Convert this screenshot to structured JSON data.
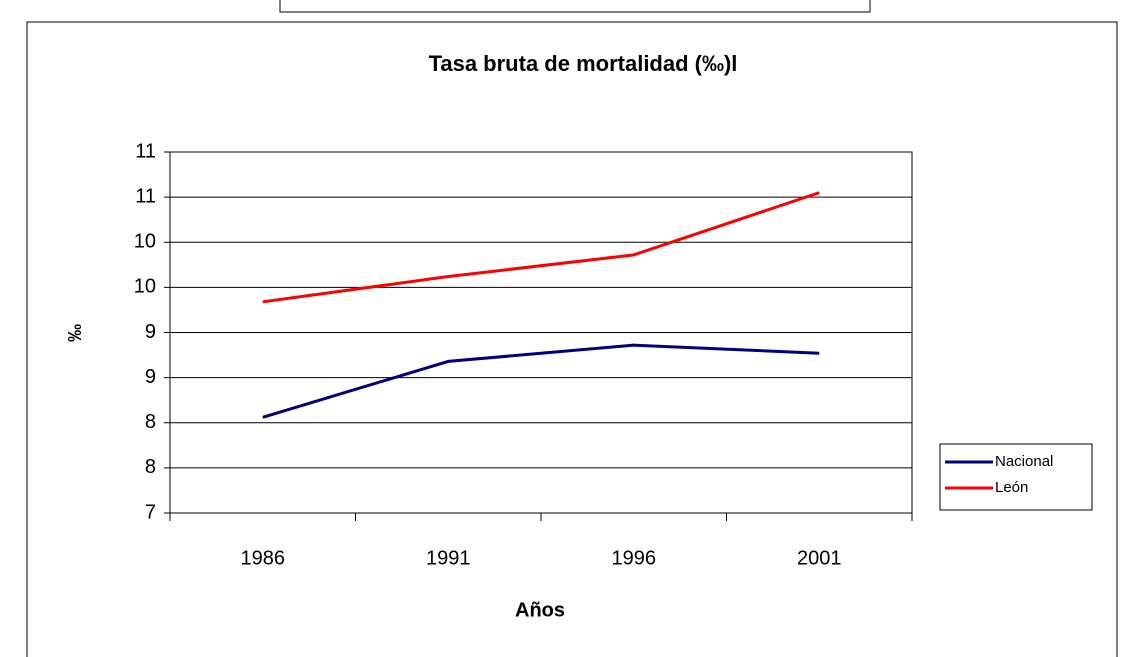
{
  "chart_data": {
    "type": "line",
    "title": "Tasa bruta de mortalidad  (‰)l",
    "y_label": "‰",
    "x_label": "Años",
    "categories": [
      "1986",
      "1991",
      "1996",
      "2001"
    ],
    "series": [
      {
        "name": "Nacional",
        "color": "#000080",
        "values": [
          8.06,
          8.68,
          8.86,
          8.77
        ]
      },
      {
        "name": "León",
        "color": "#ff0000",
        "values": [
          9.34,
          9.62,
          9.86,
          10.55
        ]
      }
    ],
    "ylim": [
      7,
      11
    ],
    "yticks": [
      7,
      {
        "value": 7.5,
        "label": "8"
      },
      8,
      {
        "value": 8.5,
        "label": "9"
      },
      9,
      {
        "value": 9.5,
        "label": "10"
      },
      10,
      {
        "value": 10.5,
        "label": "11"
      },
      11
    ],
    "grid": true,
    "legend": "right"
  }
}
